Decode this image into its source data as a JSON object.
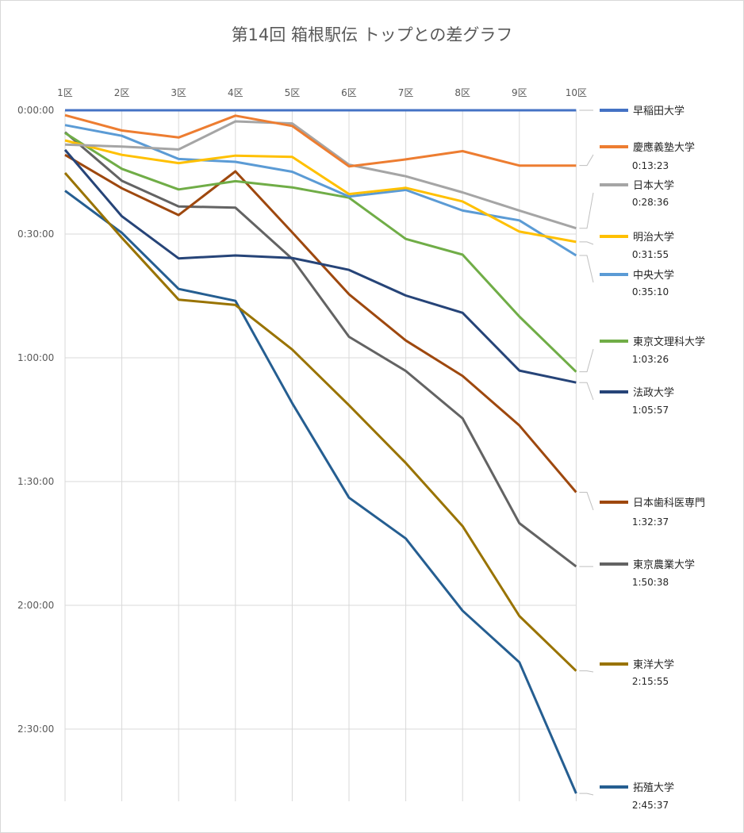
{
  "chart_data": {
    "type": "line",
    "title": "第14回 箱根駅伝 トップとの差グラフ",
    "categories": [
      "1区",
      "2区",
      "3区",
      "4区",
      "5区",
      "6区",
      "7区",
      "8区",
      "9区",
      "10区"
    ],
    "y_unit": "minutes behind leader",
    "y_inverted": true,
    "ylim": [
      0,
      167
    ],
    "y_ticks": [
      {
        "value": 0,
        "label": "0:00:00"
      },
      {
        "value": 30,
        "label": "0:30:00"
      },
      {
        "value": 60,
        "label": "1:00:00"
      },
      {
        "value": 90,
        "label": "1:30:00"
      },
      {
        "value": 120,
        "label": "2:00:00"
      },
      {
        "value": 150,
        "label": "2:30:00"
      }
    ],
    "series": [
      {
        "name": "早稲田大学",
        "label": "",
        "color": "#4472c4",
        "values": [
          0,
          0,
          0,
          0,
          0,
          0,
          0,
          0,
          0,
          0
        ]
      },
      {
        "name": "慶應義塾大学",
        "label": "0:13:23",
        "color": "#ed7d31",
        "values": [
          1.2,
          4.9,
          6.6,
          1.3,
          3.8,
          13.6,
          11.9,
          9.9,
          13.4,
          13.4
        ]
      },
      {
        "name": "日本大学",
        "label": "0:28:36",
        "color": "#a5a5a5",
        "values": [
          8.3,
          8.8,
          9.5,
          2.7,
          3.2,
          13.2,
          16.0,
          19.9,
          24.3,
          28.6
        ]
      },
      {
        "name": "明治大学",
        "label": "0:31:55",
        "color": "#ffc000",
        "values": [
          7.3,
          10.8,
          12.8,
          11.0,
          11.3,
          20.3,
          18.8,
          22.1,
          29.4,
          31.9
        ]
      },
      {
        "name": "中央大学",
        "label": "0:35:10",
        "color": "#5b9bd5",
        "values": [
          3.6,
          6.2,
          11.8,
          12.5,
          14.9,
          20.9,
          19.3,
          24.3,
          26.7,
          35.2
        ]
      },
      {
        "name": "東京文理科大学",
        "label": "1:03:26",
        "color": "#70ad47",
        "values": [
          5.5,
          14.2,
          19.2,
          17.2,
          18.7,
          21.2,
          31.2,
          35.0,
          50.0,
          63.4
        ]
      },
      {
        "name": "法政大学",
        "label": "1:05:57",
        "color": "#264478",
        "values": [
          9.6,
          25.7,
          35.9,
          35.2,
          35.8,
          38.7,
          44.9,
          49.1,
          63.1,
          66.0
        ]
      },
      {
        "name": "日本歯科医専門",
        "label": "1:32:37",
        "color": "#9e480e",
        "values": [
          10.8,
          18.9,
          25.4,
          14.8,
          29.6,
          44.6,
          55.8,
          64.4,
          76.4,
          92.6
        ]
      },
      {
        "name": "東京農業大学",
        "label": "1:50:38",
        "color": "#636363",
        "values": [
          5.3,
          17.1,
          23.3,
          23.6,
          36.0,
          54.9,
          63.2,
          74.7,
          100.1,
          110.6
        ]
      },
      {
        "name": "東洋大学",
        "label": "2:15:55",
        "color": "#997300",
        "values": [
          15.2,
          30.9,
          45.9,
          47.2,
          58.0,
          71.5,
          85.5,
          100.8,
          122.6,
          135.9
        ]
      },
      {
        "name": "拓殖大学",
        "label": "2:45:37",
        "color": "#255e91",
        "values": [
          19.5,
          29.7,
          43.3,
          46.2,
          71.0,
          93.9,
          103.8,
          121.3,
          133.8,
          165.6
        ]
      }
    ]
  }
}
